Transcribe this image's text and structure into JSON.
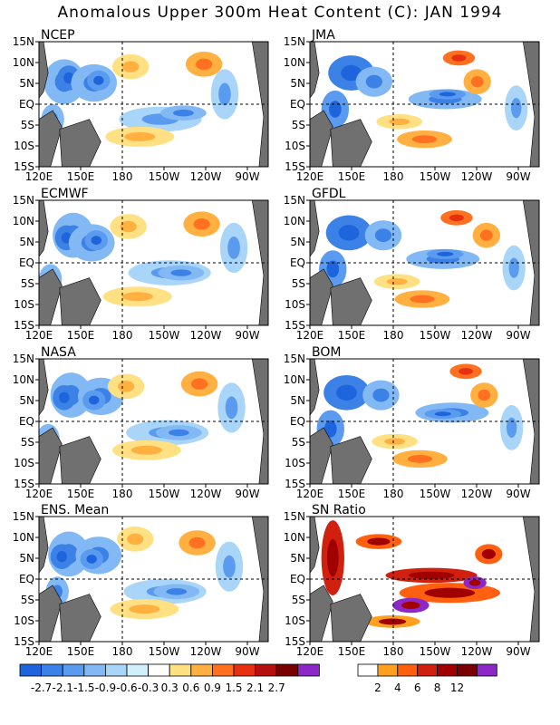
{
  "title": "Anomalous Upper 300m Heat Content (C): JAN 1994",
  "chart_data": {
    "type": "heatmap",
    "lat_ticks": [
      "15N",
      "10N",
      "5N",
      "EQ",
      "5S",
      "10S",
      "15S"
    ],
    "lon_ticks": [
      "120E",
      "150E",
      "180",
      "150W",
      "120W",
      "90W"
    ],
    "lat_range": [
      -15,
      15
    ],
    "lon_range": [
      120,
      285
    ],
    "panels": [
      {
        "name": "NCEP"
      },
      {
        "name": "JMA"
      },
      {
        "name": "ECMWF"
      },
      {
        "name": "GFDL"
      },
      {
        "name": "NASA"
      },
      {
        "name": "BOM"
      },
      {
        "name": "ENS. Mean"
      },
      {
        "name": "SN Ratio"
      }
    ],
    "legend_anomaly": {
      "labels": [
        "-2.7",
        "-2.1",
        "-1.5",
        "-0.9",
        "-0.6",
        "-0.3",
        "0.3",
        "0.6",
        "0.9",
        "1.5",
        "2.1",
        "2.7"
      ],
      "colors": [
        "#1e64dc",
        "#3c82e6",
        "#5a9bef",
        "#82b9f5",
        "#a8d5f8",
        "#d2f0fc",
        "#ffffff",
        "#ffe082",
        "#ffb040",
        "#ff7020",
        "#e63010",
        "#b41010",
        "#780000",
        "#8c28c8"
      ]
    },
    "legend_sn": {
      "labels": [
        "2",
        "4",
        "6",
        "8",
        "12"
      ],
      "colors": [
        "#ffffff",
        "#ffa020",
        "#ff6010",
        "#d02010",
        "#a00000",
        "#780000",
        "#8c28c8"
      ]
    }
  }
}
